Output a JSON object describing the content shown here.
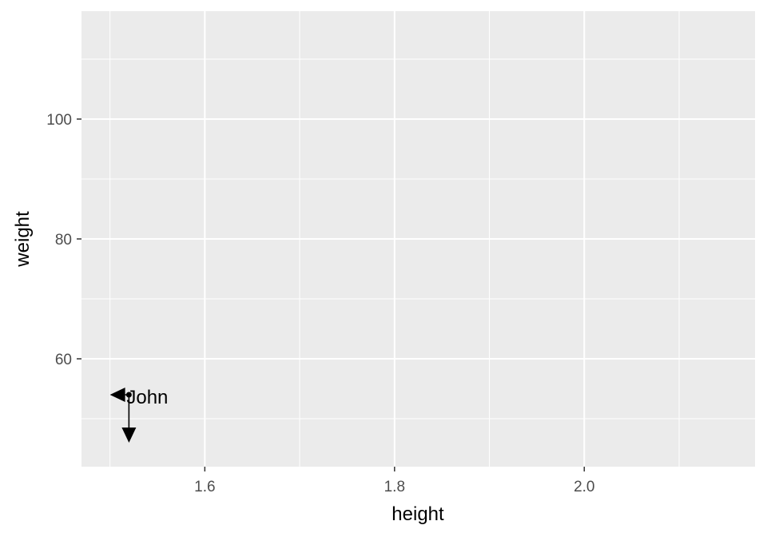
{
  "chart_data": {
    "type": "scatter",
    "title": "",
    "xlabel": "height",
    "ylabel": "weight",
    "xlim": [
      1.47,
      2.18
    ],
    "ylim": [
      42,
      118
    ],
    "x_ticks": [
      1.6,
      1.8,
      2.0
    ],
    "x_tick_labels": [
      "1.6",
      "1.8",
      "2.0"
    ],
    "y_ticks": [
      60,
      80,
      100
    ],
    "y_tick_labels": [
      "60",
      "80",
      "100"
    ],
    "grid": true,
    "points": [
      {
        "x": 1.52,
        "y": 54,
        "label": "John"
      }
    ],
    "arrows": [
      {
        "from": [
          1.52,
          54
        ],
        "to": [
          1.5,
          54
        ]
      },
      {
        "from": [
          1.52,
          54
        ],
        "to": [
          1.52,
          46
        ]
      }
    ],
    "colors": {
      "panel": "#ebebeb",
      "grid": "#ffffff",
      "point": "#000000",
      "tick_text": "#4d4d4d",
      "axis_title": "#000000"
    }
  }
}
